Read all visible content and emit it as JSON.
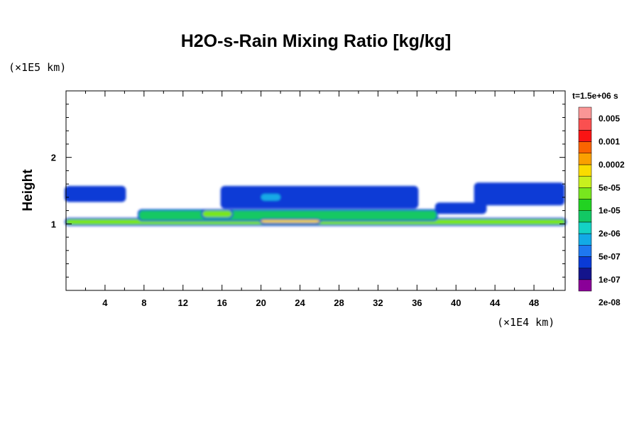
{
  "chart_data": {
    "type": "heatmap",
    "title": "H2O-s-Rain Mixing Ratio [kg/kg]",
    "ylabel": "Height",
    "xlabel": "",
    "x_unit": "(×1E4 km)",
    "y_unit": "(×1E5 km)",
    "time_label": "t=1.5e+06 s",
    "xlim": [
      0,
      51.2
    ],
    "ylim": [
      0,
      3.0
    ],
    "x_ticks": [
      4,
      8,
      12,
      16,
      20,
      24,
      28,
      32,
      36,
      40,
      44,
      48
    ],
    "y_ticks": [
      1,
      2
    ],
    "colorbar": {
      "labels": [
        "0.005",
        "0.001",
        "0.0002",
        "5e-05",
        "1e-05",
        "2e-06",
        "5e-07",
        "1e-07",
        "2e-08"
      ],
      "colors": [
        "#8a0098",
        "#14148c",
        "#0a3ad6",
        "#1e78f0",
        "#12aae6",
        "#14d2c4",
        "#12c864",
        "#22d222",
        "#78e61e",
        "#c8f01e",
        "#fadc00",
        "#faa000",
        "#fa6400",
        "#fa1414",
        "#fa5050",
        "#fa9696"
      ]
    },
    "regions": [
      {
        "x0": 0.0,
        "x1": 51.2,
        "y0": 0.99,
        "y1": 1.07,
        "level": "5e-05"
      },
      {
        "x0": 7.5,
        "x1": 38,
        "y0": 1.06,
        "y1": 1.2,
        "level": "1e-05"
      },
      {
        "x0": 20,
        "x1": 26,
        "y0": 1.02,
        "y1": 1.06,
        "level": "0.0002"
      },
      {
        "x0": 14,
        "x1": 17,
        "y0": 1.1,
        "y1": 1.2,
        "level": "5e-05"
      },
      {
        "x0": 0.0,
        "x1": 6,
        "y0": 1.35,
        "y1": 1.55,
        "level": "5e-07"
      },
      {
        "x0": 16,
        "x1": 36,
        "y0": 1.25,
        "y1": 1.55,
        "level": "5e-07"
      },
      {
        "x0": 42,
        "x1": 51,
        "y0": 1.3,
        "y1": 1.6,
        "level": "5e-07"
      },
      {
        "x0": 38,
        "x1": 43,
        "y0": 1.17,
        "y1": 1.3,
        "level": "5e-07"
      },
      {
        "x0": 20,
        "x1": 22,
        "y0": 1.35,
        "y1": 1.45,
        "level": "2e-06"
      }
    ]
  }
}
